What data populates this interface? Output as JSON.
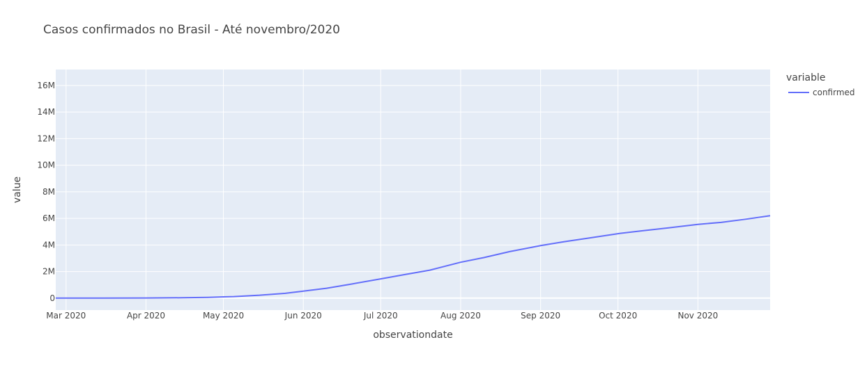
{
  "chart_data": {
    "type": "line",
    "title": "Casos confirmados no Brasil - Até novembro/2020",
    "xlabel": "observationdate",
    "ylabel": "value",
    "x_ticks": [
      {
        "date": "2020-03-01",
        "label": "Mar 2020"
      },
      {
        "date": "2020-04-01",
        "label": "Apr 2020"
      },
      {
        "date": "2020-05-01",
        "label": "May 2020"
      },
      {
        "date": "2020-06-01",
        "label": "Jun 2020"
      },
      {
        "date": "2020-07-01",
        "label": "Jul 2020"
      },
      {
        "date": "2020-08-01",
        "label": "Aug 2020"
      },
      {
        "date": "2020-09-01",
        "label": "Sep 2020"
      },
      {
        "date": "2020-10-01",
        "label": "Oct 2020"
      },
      {
        "date": "2020-11-01",
        "label": "Nov 2020"
      }
    ],
    "y_ticks": [
      {
        "value": 0,
        "label": "0"
      },
      {
        "value": 2000000,
        "label": "2M"
      },
      {
        "value": 4000000,
        "label": "4M"
      },
      {
        "value": 6000000,
        "label": "6M"
      },
      {
        "value": 8000000,
        "label": "8M"
      },
      {
        "value": 10000000,
        "label": "10M"
      },
      {
        "value": 12000000,
        "label": "12M"
      },
      {
        "value": 14000000,
        "label": "14M"
      },
      {
        "value": 16000000,
        "label": "16M"
      }
    ],
    "xlim": [
      "2020-02-26",
      "2020-11-29"
    ],
    "ylim": [
      -900000,
      17200000
    ],
    "grid": true,
    "legend": {
      "title": "variable",
      "position": "right"
    },
    "series": [
      {
        "name": "confirmed",
        "color": "#636efa",
        "x": [
          "2020-02-26",
          "2020-03-15",
          "2020-04-01",
          "2020-04-15",
          "2020-04-25",
          "2020-05-01",
          "2020-05-05",
          "2020-05-15",
          "2020-05-25",
          "2020-06-01",
          "2020-06-10",
          "2020-06-20",
          "2020-07-01",
          "2020-07-10",
          "2020-07-20",
          "2020-08-01",
          "2020-08-10",
          "2020-08-20",
          "2020-09-01",
          "2020-09-10",
          "2020-09-20",
          "2020-10-01",
          "2020-10-10",
          "2020-10-20",
          "2020-11-01",
          "2020-11-10",
          "2020-11-20",
          "2020-11-29"
        ],
        "y": [
          0,
          200,
          6800,
          28000,
          58000,
          91000,
          115000,
          218000,
          365000,
          525000,
          740000,
          1070000,
          1450000,
          1760000,
          2100000,
          2700000,
          3050000,
          3500000,
          3950000,
          4240000,
          4530000,
          4850000,
          5060000,
          5270000,
          5550000,
          5700000,
          5950000,
          6200000
        ]
      }
    ]
  }
}
